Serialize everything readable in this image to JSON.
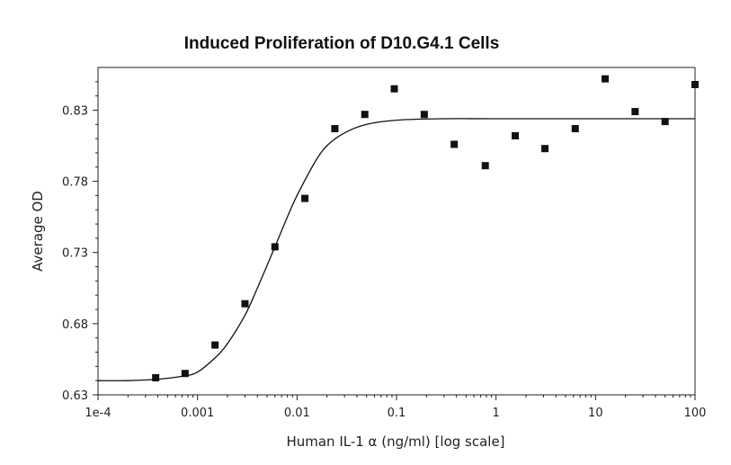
{
  "chart_data": {
    "type": "scatter",
    "title": "Induced Proliferation of D10.G4.1 Cells",
    "xlabel": "Human IL-1 α (ng/ml) [log scale]",
    "ylabel": "Average OD",
    "x_scale": "log",
    "xlim": [
      0.0001,
      100
    ],
    "ylim": [
      0.63,
      0.86
    ],
    "x_ticks": [
      0.0001,
      0.001,
      0.01,
      0.1,
      1,
      10,
      100
    ],
    "x_tick_labels": [
      "1e-4",
      "0.001",
      "0.01",
      "0.1",
      "1",
      "10",
      "100"
    ],
    "y_ticks": [
      0.63,
      0.68,
      0.73,
      0.78,
      0.83
    ],
    "y_tick_labels": [
      "0.63",
      "0.68",
      "0.73",
      "0.78",
      "0.83"
    ],
    "grid": false,
    "series": [
      {
        "type": "scatter",
        "marker": "square",
        "color": "#111111",
        "points": [
          {
            "x": 0.00038,
            "y": 0.642
          },
          {
            "x": 0.00075,
            "y": 0.645
          },
          {
            "x": 0.0015,
            "y": 0.665
          },
          {
            "x": 0.003,
            "y": 0.694
          },
          {
            "x": 0.006,
            "y": 0.734
          },
          {
            "x": 0.012,
            "y": 0.768
          },
          {
            "x": 0.024,
            "y": 0.817
          },
          {
            "x": 0.048,
            "y": 0.827
          },
          {
            "x": 0.095,
            "y": 0.845
          },
          {
            "x": 0.19,
            "y": 0.827
          },
          {
            "x": 0.38,
            "y": 0.806
          },
          {
            "x": 0.78,
            "y": 0.791
          },
          {
            "x": 1.56,
            "y": 0.812
          },
          {
            "x": 3.1,
            "y": 0.803
          },
          {
            "x": 6.25,
            "y": 0.817
          },
          {
            "x": 12.5,
            "y": 0.852
          },
          {
            "x": 25,
            "y": 0.829
          },
          {
            "x": 50,
            "y": 0.822
          },
          {
            "x": 100,
            "y": 0.848
          }
        ]
      },
      {
        "type": "line",
        "style": "fit-curve",
        "color": "#111111",
        "points": [
          {
            "x": 0.0001,
            "y": 0.64
          },
          {
            "x": 0.0002,
            "y": 0.64
          },
          {
            "x": 0.0004,
            "y": 0.641
          },
          {
            "x": 0.0007,
            "y": 0.643
          },
          {
            "x": 0.001,
            "y": 0.646
          },
          {
            "x": 0.0015,
            "y": 0.656
          },
          {
            "x": 0.002,
            "y": 0.666
          },
          {
            "x": 0.003,
            "y": 0.686
          },
          {
            "x": 0.004,
            "y": 0.705
          },
          {
            "x": 0.006,
            "y": 0.734
          },
          {
            "x": 0.008,
            "y": 0.755
          },
          {
            "x": 0.01,
            "y": 0.77
          },
          {
            "x": 0.015,
            "y": 0.793
          },
          {
            "x": 0.02,
            "y": 0.805
          },
          {
            "x": 0.03,
            "y": 0.814
          },
          {
            "x": 0.05,
            "y": 0.82
          },
          {
            "x": 0.1,
            "y": 0.823
          },
          {
            "x": 0.3,
            "y": 0.824
          },
          {
            "x": 1,
            "y": 0.824
          },
          {
            "x": 10,
            "y": 0.824
          },
          {
            "x": 100,
            "y": 0.824
          }
        ]
      }
    ]
  }
}
